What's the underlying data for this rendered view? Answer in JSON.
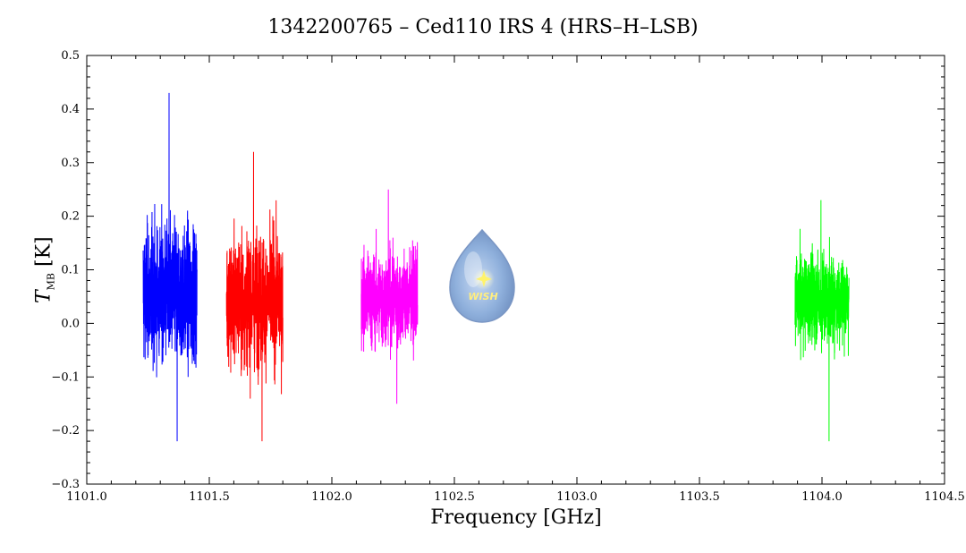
{
  "chart_data": {
    "type": "line",
    "title": "1342200765 – Ced110 IRS 4 (HRS–H–LSB)",
    "xlabel": "Frequency [GHz]",
    "ylabel_main": "T",
    "ylabel_sub": "MB",
    "ylabel_unit": "[K]",
    "xlim": [
      1101.0,
      1104.5
    ],
    "ylim": [
      -0.3,
      0.5
    ],
    "xticks": [
      "1101.0",
      "1101.5",
      "1102.0",
      "1102.5",
      "1103.0",
      "1103.5",
      "1104.0",
      "1104.5"
    ],
    "yticks": [
      "−0.3",
      "−0.2",
      "−0.1",
      "0.0",
      "0.1",
      "0.2",
      "0.3",
      "0.4",
      "0.5"
    ],
    "grid": false,
    "series": [
      {
        "color": "#0000ff",
        "x_range": [
          1101.23,
          1101.45
        ],
        "mean": 0.055,
        "noise_max": 0.43,
        "noise_min": -0.22
      },
      {
        "color": "#ff0000",
        "x_range": [
          1101.57,
          1101.8
        ],
        "mean": 0.045,
        "noise_max": 0.32,
        "noise_min": -0.22
      },
      {
        "color": "#ff00ff",
        "x_range": [
          1102.12,
          1102.35
        ],
        "mean": 0.045,
        "noise_max": 0.25,
        "noise_min": -0.15
      },
      {
        "color": "#00ff00",
        "x_range": [
          1103.89,
          1104.11
        ],
        "mean": 0.045,
        "noise_max": 0.23,
        "noise_min": -0.22
      }
    ]
  },
  "logo": {
    "text": "WISH"
  }
}
